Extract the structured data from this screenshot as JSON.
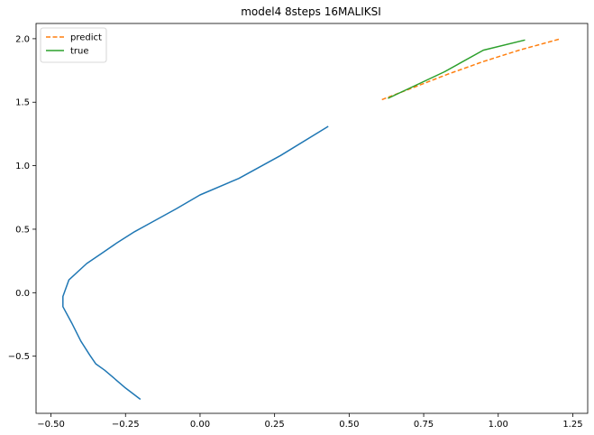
{
  "chart_data": {
    "type": "line",
    "title": "model4 8steps 16MALIKSI",
    "xlabel": "",
    "ylabel": "",
    "xlim": [
      -0.55,
      1.3
    ],
    "ylim": [
      -0.95,
      2.12
    ],
    "xticks": [
      -0.5,
      -0.25,
      0.0,
      0.25,
      0.5,
      0.75,
      1.0,
      1.25
    ],
    "xtick_labels": [
      "−0.50",
      "−0.25",
      "0.00",
      "0.25",
      "0.50",
      "0.75",
      "1.00",
      "1.25"
    ],
    "yticks": [
      -0.5,
      0.0,
      0.5,
      1.0,
      1.5,
      2.0
    ],
    "ytick_labels": [
      "−0.5",
      "0.0",
      "0.5",
      "1.0",
      "1.5",
      "2.0"
    ],
    "grid": false,
    "legend_position": "top-left",
    "series": [
      {
        "name": "",
        "color": "#1f77b4",
        "dash": "solid",
        "in_legend": false,
        "x": [
          -0.2,
          -0.25,
          -0.29,
          -0.32,
          -0.35,
          -0.37,
          -0.4,
          -0.43,
          -0.46,
          -0.46,
          -0.44,
          -0.38,
          -0.33,
          -0.28,
          -0.22,
          -0.15,
          -0.08,
          0.0,
          0.13,
          0.27,
          0.43
        ],
        "y": [
          -0.84,
          -0.75,
          -0.67,
          -0.61,
          -0.56,
          -0.49,
          -0.38,
          -0.24,
          -0.11,
          -0.03,
          0.1,
          0.23,
          0.31,
          0.39,
          0.48,
          0.57,
          0.66,
          0.77,
          0.9,
          1.08,
          1.31
        ]
      },
      {
        "name": "predict",
        "color": "#ff7f0e",
        "dash": "dashed",
        "in_legend": true,
        "x": [
          0.61,
          0.72,
          0.83,
          0.95,
          1.07,
          1.21
        ],
        "y": [
          1.52,
          1.62,
          1.72,
          1.82,
          1.91,
          2.0
        ]
      },
      {
        "name": "true",
        "color": "#2ca02c",
        "dash": "solid",
        "in_legend": true,
        "x": [
          0.63,
          0.73,
          0.82,
          0.95,
          1.09
        ],
        "y": [
          1.53,
          1.64,
          1.74,
          1.91,
          1.99
        ]
      }
    ]
  }
}
